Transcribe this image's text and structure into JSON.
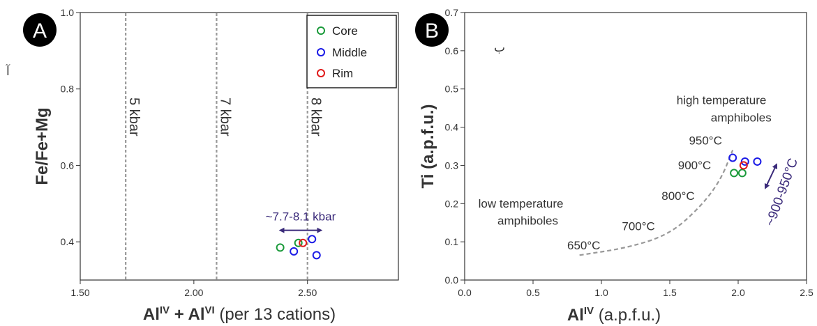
{
  "figure": {
    "marks": {
      "left": "آ",
      "right": "ب"
    }
  },
  "chart_data": [
    {
      "type": "scatter",
      "panel_label": "A",
      "xlabel": {
        "main1": "Al",
        "sup1": "IV",
        "plus": " + ",
        "main2": "Al",
        "sup2": "VI",
        "rest": " (per 13 cations)"
      },
      "ylabel": "Fe/Fe+Mg",
      "xlim": [
        1.5,
        2.9
      ],
      "ylim": [
        0.3,
        1.0
      ],
      "xticks": [
        {
          "v": 1.5,
          "label": "1.50"
        },
        {
          "v": 2.0,
          "label": "2.00"
        },
        {
          "v": 2.5,
          "label": "2.50"
        }
      ],
      "yticks": [
        {
          "v": 0.4,
          "label": "0.4"
        },
        {
          "v": 0.6,
          "label": "0.6"
        },
        {
          "v": 0.8,
          "label": "0.8"
        },
        {
          "v": 1.0,
          "label": "1.0"
        }
      ],
      "legend": {
        "position": "top-right",
        "entries": [
          {
            "name": "Core",
            "color": "#1a9a3a"
          },
          {
            "name": "Middle",
            "color": "#1a1ae6"
          },
          {
            "name": "Rim",
            "color": "#e01a1a"
          }
        ]
      },
      "series": [
        {
          "name": "Core",
          "color": "#1a9a3a",
          "points": [
            {
              "x": 2.38,
              "y": 0.385
            },
            {
              "x": 2.46,
              "y": 0.397
            }
          ]
        },
        {
          "name": "Middle",
          "color": "#1a1ae6",
          "points": [
            {
              "x": 2.44,
              "y": 0.375
            },
            {
              "x": 2.52,
              "y": 0.407
            },
            {
              "x": 2.54,
              "y": 0.365
            }
          ]
        },
        {
          "name": "Rim",
          "color": "#e01a1a",
          "points": [
            {
              "x": 2.48,
              "y": 0.397
            }
          ]
        }
      ],
      "isobars": [
        {
          "x": 1.7,
          "label": "5 kbar"
        },
        {
          "x": 2.1,
          "label": "7 kbar"
        },
        {
          "x": 2.5,
          "label": "8 kbar"
        }
      ],
      "range_annotation": {
        "label": "~7.7-8.1 kbar",
        "x_from": 2.38,
        "x_to": 2.56,
        "y": 0.43,
        "color": "#3a2a7a"
      }
    },
    {
      "type": "scatter",
      "panel_label": "B",
      "xlabel": {
        "main": "Al",
        "sup": "IV",
        "rest": " (a.p.f.u.)"
      },
      "ylabel": "Ti (a.p.f.u.)",
      "xlim": [
        0.0,
        2.5
      ],
      "ylim": [
        0.0,
        0.7
      ],
      "xticks": [
        {
          "v": 0.0,
          "label": "0.0"
        },
        {
          "v": 0.5,
          "label": "0.5"
        },
        {
          "v": 1.0,
          "label": "1.0"
        },
        {
          "v": 1.5,
          "label": "1.5"
        },
        {
          "v": 2.0,
          "label": "2.0"
        },
        {
          "v": 2.5,
          "label": "2.5"
        }
      ],
      "yticks": [
        {
          "v": 0.0,
          "label": "0.0"
        },
        {
          "v": 0.1,
          "label": "0.1"
        },
        {
          "v": 0.2,
          "label": "0.2"
        },
        {
          "v": 0.3,
          "label": "0.3"
        },
        {
          "v": 0.4,
          "label": "0.4"
        },
        {
          "v": 0.5,
          "label": "0.5"
        },
        {
          "v": 0.6,
          "label": "0.6"
        },
        {
          "v": 0.7,
          "label": "0.7"
        }
      ],
      "series": [
        {
          "name": "Core",
          "color": "#1a9a3a",
          "points": [
            {
              "x": 1.97,
              "y": 0.28
            },
            {
              "x": 2.03,
              "y": 0.28
            }
          ]
        },
        {
          "name": "Middle",
          "color": "#1a1ae6",
          "points": [
            {
              "x": 1.96,
              "y": 0.32
            },
            {
              "x": 2.05,
              "y": 0.31
            },
            {
              "x": 2.14,
              "y": 0.31
            }
          ]
        },
        {
          "name": "Rim",
          "color": "#e01a1a",
          "points": [
            {
              "x": 2.04,
              "y": 0.3
            }
          ]
        }
      ],
      "isotherm_curve": [
        [
          0.84,
          0.065
        ],
        [
          1.2,
          0.085
        ],
        [
          1.5,
          0.12
        ],
        [
          1.72,
          0.19
        ],
        [
          1.87,
          0.26
        ],
        [
          1.96,
          0.34
        ]
      ],
      "isotherm_labels": [
        {
          "text": "650°C",
          "x": 0.75,
          "y": 0.08
        },
        {
          "text": "700°C",
          "x": 1.15,
          "y": 0.13
        },
        {
          "text": "800°C",
          "x": 1.44,
          "y": 0.21
        },
        {
          "text": "900°C",
          "x": 1.56,
          "y": 0.29
        },
        {
          "text": "950°C",
          "x": 1.64,
          "y": 0.355
        }
      ],
      "annotations": [
        {
          "text": "high temperature",
          "x": 1.55,
          "y": 0.46
        },
        {
          "text": "amphiboles",
          "x": 1.8,
          "y": 0.415
        },
        {
          "text": "low temperature",
          "x": 0.1,
          "y": 0.19
        },
        {
          "text": "amphiboles",
          "x": 0.24,
          "y": 0.145
        }
      ],
      "trend_label": {
        "text": "~900-950°C",
        "color": "#3a2a7a"
      }
    }
  ]
}
